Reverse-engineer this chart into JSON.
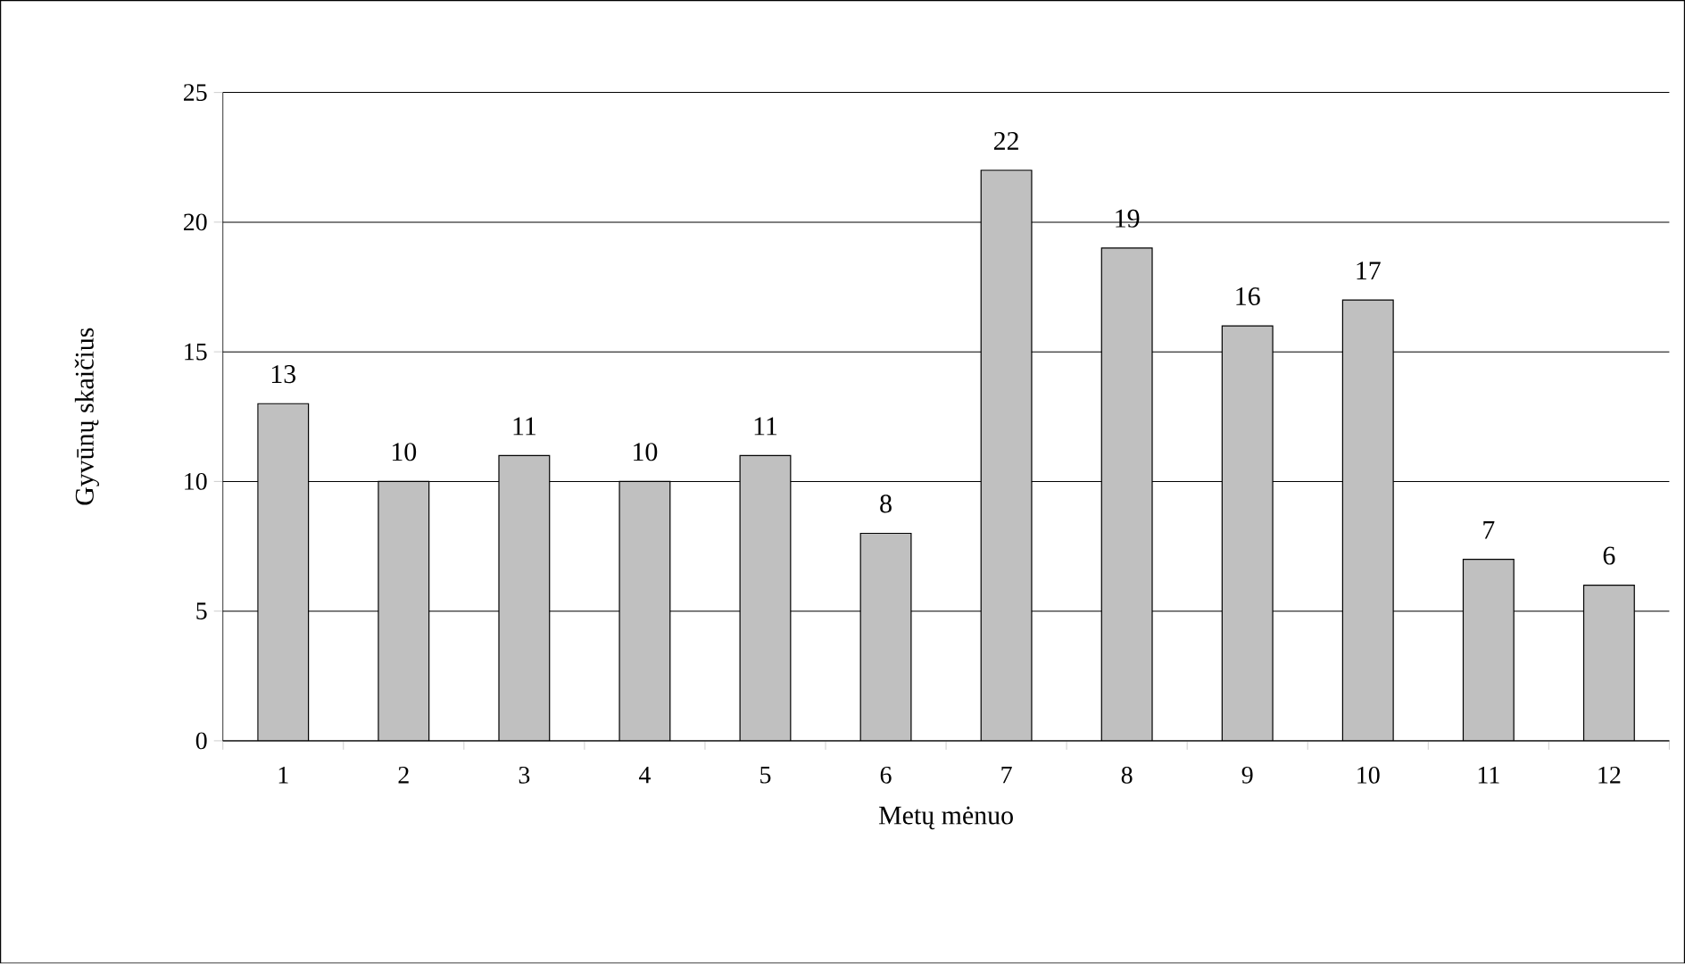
{
  "chart_data": {
    "type": "bar",
    "xlabel": "Metų mėnuo",
    "ylabel": "Gyvūnų skaičius",
    "categories": [
      "1",
      "2",
      "3",
      "4",
      "5",
      "6",
      "7",
      "8",
      "9",
      "10",
      "11",
      "12"
    ],
    "values": [
      13,
      10,
      11,
      10,
      11,
      8,
      22,
      19,
      16,
      17,
      7,
      6
    ],
    "color": "#c0c0c0",
    "ylim": [
      0,
      25
    ],
    "yticks": [
      0,
      5,
      10,
      15,
      20,
      25
    ],
    "grid": "y",
    "data_labels": true
  }
}
